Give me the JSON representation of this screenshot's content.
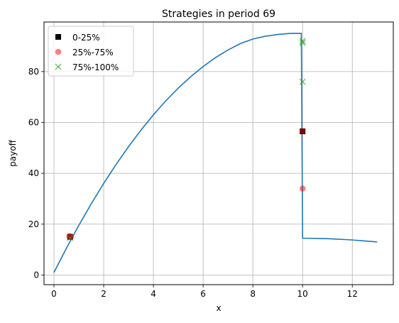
{
  "chart_data": {
    "type": "line",
    "title": "Strategies in period 69",
    "xlabel": "x",
    "ylabel": "payoff",
    "xlim": [
      -0.4,
      13.65
    ],
    "ylim": [
      -3.8,
      99.5
    ],
    "xticks": [
      0,
      2,
      4,
      6,
      8,
      10,
      12
    ],
    "yticks": [
      0,
      20,
      40,
      60,
      80
    ],
    "grid": true,
    "legend_position": "top-left",
    "curve": {
      "color": "#1f77b4",
      "points": [
        {
          "x": 0,
          "y": 1
        },
        {
          "x": 0.5,
          "y": 10.5
        },
        {
          "x": 1,
          "y": 19.5
        },
        {
          "x": 1.5,
          "y": 28
        },
        {
          "x": 2,
          "y": 36
        },
        {
          "x": 2.5,
          "y": 43.5
        },
        {
          "x": 3,
          "y": 50.5
        },
        {
          "x": 3.5,
          "y": 57
        },
        {
          "x": 4,
          "y": 63
        },
        {
          "x": 4.5,
          "y": 68.5
        },
        {
          "x": 5,
          "y": 73.5
        },
        {
          "x": 5.5,
          "y": 78
        },
        {
          "x": 6,
          "y": 82
        },
        {
          "x": 6.5,
          "y": 85.5
        },
        {
          "x": 7,
          "y": 88.5
        },
        {
          "x": 7.5,
          "y": 91
        },
        {
          "x": 8,
          "y": 92.8
        },
        {
          "x": 8.5,
          "y": 93.9
        },
        {
          "x": 9,
          "y": 94.6
        },
        {
          "x": 9.5,
          "y": 95
        },
        {
          "x": 9.95,
          "y": 95
        },
        {
          "x": 10,
          "y": 14.5
        },
        {
          "x": 11,
          "y": 14.3
        },
        {
          "x": 12,
          "y": 13.8
        },
        {
          "x": 13,
          "y": 13
        }
      ]
    },
    "series": [
      {
        "name": "0-25%",
        "marker": "square",
        "color": "#000000",
        "points": [
          {
            "x": 0.65,
            "y": 15
          },
          {
            "x": 10,
            "y": 56.5
          }
        ]
      },
      {
        "name": "25%-75%",
        "marker": "circle",
        "color": "#ff0000",
        "alpha": 0.5,
        "points": [
          {
            "x": 0.62,
            "y": 15.3
          },
          {
            "x": 0.68,
            "y": 15.1
          },
          {
            "x": 10,
            "y": 56.6
          },
          {
            "x": 10,
            "y": 34
          }
        ]
      },
      {
        "name": "75%-100%",
        "marker": "x",
        "color": "#2ca02c",
        "alpha": 0.6,
        "points": [
          {
            "x": 0.65,
            "y": 14.6
          },
          {
            "x": 10,
            "y": 92
          },
          {
            "x": 10,
            "y": 91.3
          },
          {
            "x": 10,
            "y": 76
          }
        ]
      }
    ]
  }
}
